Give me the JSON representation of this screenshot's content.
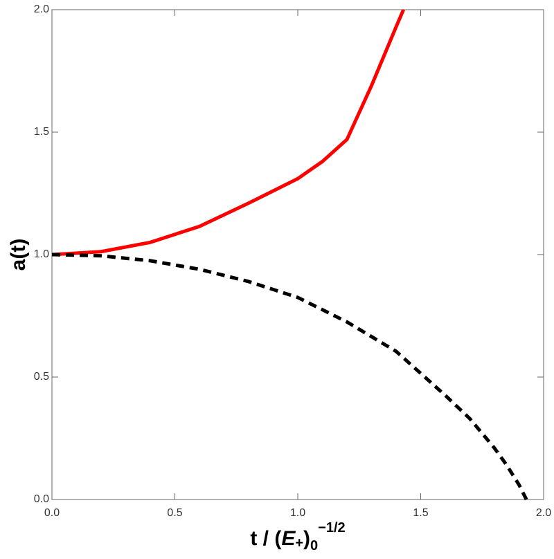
{
  "chart_data": {
    "type": "line",
    "xlabel": [
      "t / (",
      "E",
      "+",
      ")",
      "0",
      "−1/2"
    ],
    "ylabel": "a(t)",
    "xlim": [
      0,
      2
    ],
    "ylim": [
      0,
      2
    ],
    "xticks": [
      {
        "value": 0,
        "label": "0.0"
      },
      0.5,
      {
        "value": 1,
        "label": "1.0"
      },
      1.5,
      {
        "value": 2,
        "label": "2.0"
      }
    ],
    "yticks": [
      {
        "value": 0,
        "label": "0.0"
      },
      0.5,
      {
        "value": 1,
        "label": "1.0"
      },
      1.5,
      {
        "value": 2,
        "label": "2.0"
      }
    ],
    "series": [
      {
        "color": "#ff0000",
        "dash": false,
        "x": [
          0,
          0.2,
          0.4,
          0.6,
          0.8,
          1.0,
          1.1,
          1.2,
          1.3,
          1.4,
          1.43
        ],
        "values": [
          1,
          1.012,
          1.05,
          1.115,
          1.21,
          1.31,
          1.38,
          1.47,
          1.69,
          1.93,
          2.0
        ]
      },
      {
        "color": "#000000",
        "dash": true,
        "x": [
          0,
          0.2,
          0.4,
          0.6,
          0.8,
          1.0,
          1.2,
          1.4,
          1.6,
          1.7,
          1.8,
          1.85,
          1.9,
          1.93
        ],
        "values": [
          1,
          0.995,
          0.975,
          0.94,
          0.89,
          0.825,
          0.725,
          0.605,
          0.425,
          0.33,
          0.21,
          0.14,
          0.06,
          0
        ]
      }
    ]
  }
}
